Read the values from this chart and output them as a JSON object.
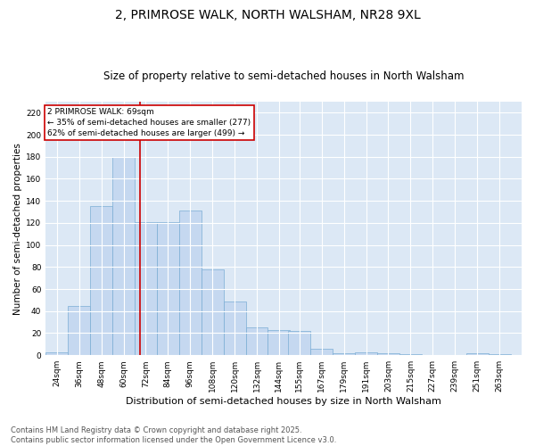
{
  "title": "2, PRIMROSE WALK, NORTH WALSHAM, NR28 9XL",
  "subtitle": "Size of property relative to semi-detached houses in North Walsham",
  "xlabel": "Distribution of semi-detached houses by size in North Walsham",
  "ylabel": "Number of semi-detached properties",
  "footnote": "Contains HM Land Registry data © Crown copyright and database right 2025.\nContains public sector information licensed under the Open Government Licence v3.0.",
  "annotation_title": "2 PRIMROSE WALK: 69sqm",
  "annotation_line1": "← 35% of semi-detached houses are smaller (277)",
  "annotation_line2": "62% of semi-detached houses are larger (499) →",
  "property_size": 69,
  "categories": [
    "24sqm",
    "36sqm",
    "48sqm",
    "60sqm",
    "72sqm",
    "84sqm",
    "96sqm",
    "108sqm",
    "120sqm",
    "132sqm",
    "144sqm",
    "155sqm",
    "167sqm",
    "179sqm",
    "191sqm",
    "203sqm",
    "215sqm",
    "227sqm",
    "239sqm",
    "251sqm",
    "263sqm"
  ],
  "bin_starts": [
    24,
    36,
    48,
    60,
    72,
    84,
    96,
    108,
    120,
    132,
    144,
    155,
    167,
    179,
    191,
    203,
    215,
    227,
    239,
    251,
    263
  ],
  "values": [
    3,
    45,
    135,
    180,
    121,
    121,
    131,
    78,
    49,
    25,
    23,
    22,
    6,
    2,
    3,
    2,
    1,
    0,
    0,
    2,
    1
  ],
  "bar_color": "#c5d8f0",
  "bar_edge_color": "#7aadd4",
  "vline_color": "#cc0000",
  "box_color": "#cc0000",
  "ylim": [
    0,
    230
  ],
  "yticks": [
    0,
    20,
    40,
    60,
    80,
    100,
    120,
    140,
    160,
    180,
    200,
    220
  ],
  "bg_color": "#dce8f5",
  "title_fontsize": 10,
  "subtitle_fontsize": 8.5,
  "ylabel_fontsize": 7.5,
  "xlabel_fontsize": 8,
  "tick_fontsize": 6.5,
  "footnote_fontsize": 6
}
